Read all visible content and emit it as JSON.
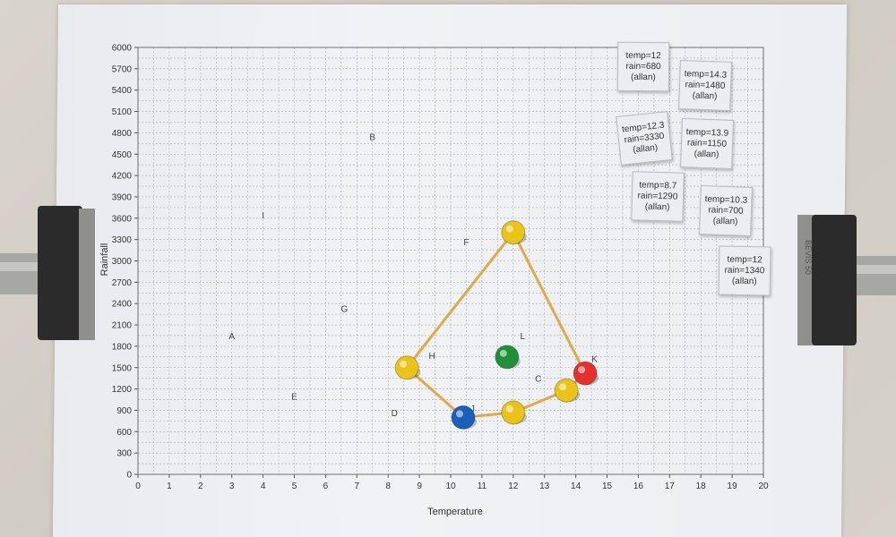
{
  "chart_data": {
    "type": "scatter",
    "xlabel": "Temperature",
    "ylabel": "Rainfall",
    "xlim": [
      0,
      20
    ],
    "ylim": [
      0,
      6000
    ],
    "x_ticks": [
      "0",
      "1",
      "2",
      "3",
      "4",
      "5",
      "6",
      "7",
      "8",
      "9",
      "10",
      "11",
      "12",
      "13",
      "14",
      "15",
      "16",
      "17",
      "18",
      "19",
      "20"
    ],
    "y_ticks": [
      "0",
      "300",
      "600",
      "900",
      "1200",
      "1500",
      "1800",
      "2100",
      "2400",
      "2700",
      "3000",
      "3300",
      "3600",
      "3900",
      "4200",
      "4500",
      "4800",
      "5100",
      "5400",
      "5700",
      "6000"
    ],
    "grid": true,
    "point_labels": [
      {
        "label": "A",
        "x": 3.0,
        "y": 1900
      },
      {
        "label": "B",
        "x": 7.5,
        "y": 4700
      },
      {
        "label": "C",
        "x": 12.8,
        "y": 1300
      },
      {
        "label": "D",
        "x": 8.2,
        "y": 820
      },
      {
        "label": "E",
        "x": 5.0,
        "y": 1050
      },
      {
        "label": "F",
        "x": 10.5,
        "y": 3220
      },
      {
        "label": "G",
        "x": 6.6,
        "y": 2280
      },
      {
        "label": "H",
        "x": 9.4,
        "y": 1620
      },
      {
        "label": "I",
        "x": 4.0,
        "y": 3600
      },
      {
        "label": "J",
        "x": 10.7,
        "y": 880
      },
      {
        "label": "K",
        "x": 14.6,
        "y": 1580
      },
      {
        "label": "L",
        "x": 12.3,
        "y": 1900
      }
    ],
    "pins": [
      {
        "x": 12.0,
        "y": 3400,
        "color": "#e9c21a"
      },
      {
        "x": 8.6,
        "y": 1500,
        "color": "#e9c21a"
      },
      {
        "x": 10.4,
        "y": 800,
        "color": "#1a5fb8"
      },
      {
        "x": 12.0,
        "y": 870,
        "color": "#e9c21a"
      },
      {
        "x": 13.7,
        "y": 1180,
        "color": "#e9c21a"
      },
      {
        "x": 14.3,
        "y": 1420,
        "color": "#e53030"
      },
      {
        "x": 11.8,
        "y": 1650,
        "color": "#1f8f3a"
      }
    ],
    "band_order": [
      0,
      5,
      4,
      3,
      2,
      1
    ],
    "band_color": "#e0a94a"
  },
  "cards": [
    {
      "lines": [
        "temp=12",
        "rain=680",
        "(allan)"
      ]
    },
    {
      "lines": [
        "temp=14.3",
        "rain=1480",
        "(allan)"
      ]
    },
    {
      "lines": [
        "temp=12.3",
        "rain=3330",
        "(allan)"
      ]
    },
    {
      "lines": [
        "temp=13.9",
        "rain=1150",
        "(allan)"
      ]
    },
    {
      "lines": [
        "temp=8.7",
        "rain=1290",
        "(allan)"
      ]
    },
    {
      "lines": [
        "temp=10.3",
        "rain=700",
        "(allan)"
      ]
    },
    {
      "lines": [
        "temp=12",
        "rain=1340",
        "(allan)"
      ]
    }
  ],
  "clip_text": "BEVIS 50"
}
